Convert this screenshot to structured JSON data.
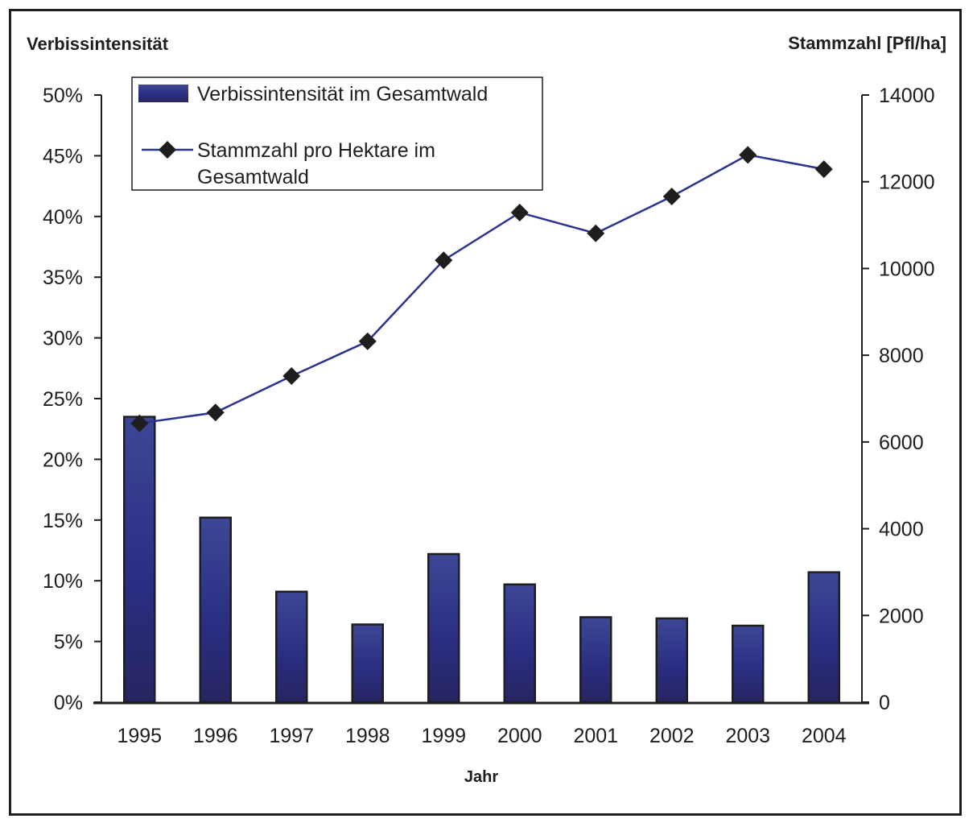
{
  "chart_data": {
    "type": "bar+line",
    "title": "",
    "xlabel": "Jahr",
    "ylabel_left": "Verbissintensität",
    "ylabel_right": "Stammzahl [Pfl/ha]",
    "categories": [
      "1995",
      "1996",
      "1997",
      "1998",
      "1999",
      "2000",
      "2001",
      "2002",
      "2003",
      "2004"
    ],
    "ylim_left": [
      0,
      50
    ],
    "ylim_right": [
      0,
      14000
    ],
    "left_ticks": [
      "0%",
      "5%",
      "10%",
      "15%",
      "20%",
      "25%",
      "30%",
      "35%",
      "40%",
      "45%",
      "50%"
    ],
    "left_tick_values": [
      0,
      5,
      10,
      15,
      20,
      25,
      30,
      35,
      40,
      45,
      50
    ],
    "right_ticks": [
      "0",
      "2000",
      "4000",
      "6000",
      "8000",
      "10000",
      "12000",
      "14000"
    ],
    "right_tick_values": [
      0,
      2000,
      4000,
      6000,
      8000,
      10000,
      12000,
      14000
    ],
    "grid": false,
    "legend_position": "top-left",
    "series": [
      {
        "name": "Verbissintensität im Gesamtwald",
        "type": "bar",
        "axis": "left",
        "unit": "%",
        "color": "#2b2f82",
        "values": [
          23.5,
          15.2,
          9.1,
          6.4,
          12.2,
          9.7,
          7.0,
          6.9,
          6.3,
          10.7
        ]
      },
      {
        "name_line1": "Stammzahl pro Hektare im",
        "name_line2": "Gesamtwald",
        "type": "line",
        "axis": "right",
        "color": "#2b3290",
        "marker": "diamond",
        "marker_color": "#1e1e1e",
        "values": [
          6430,
          6680,
          7520,
          8320,
          10190,
          11290,
          10810,
          11660,
          12620,
          12290
        ]
      }
    ]
  }
}
